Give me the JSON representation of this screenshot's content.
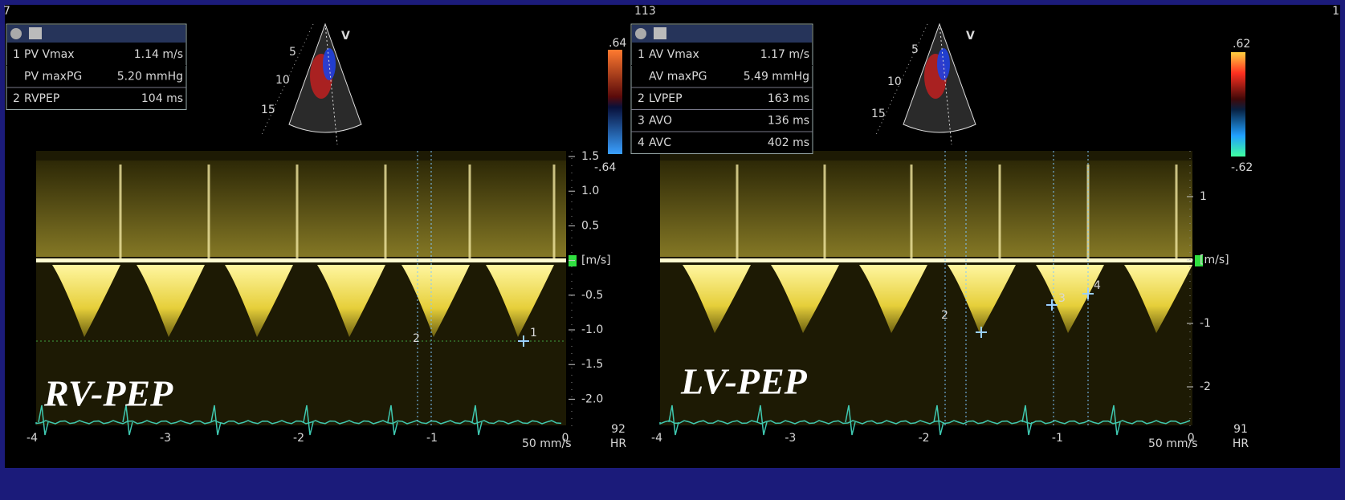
{
  "corner_labels": {
    "left": "7",
    "center": "113",
    "right": "1"
  },
  "panels": [
    {
      "label": "RV-PEP",
      "measurements": [
        {
          "index": "1",
          "name": "PV Vmax",
          "value": "1.14 m/s"
        },
        {
          "name": "PV maxPG",
          "value": "5.20 mmHg"
        },
        {
          "index": "2",
          "name": "RVPEP",
          "value": "104 ms"
        }
      ],
      "sector": {
        "depths": [
          "5",
          "10",
          "15"
        ],
        "mode": "V"
      },
      "color_scale": {
        "top": ".64",
        "bottom": "-.64"
      },
      "velocity_axis": [
        "1.5",
        "1.0",
        "0.5",
        "[m/s]",
        "-0.5",
        "-1.0",
        "-1.5",
        "-2.0"
      ],
      "time_axis": [
        "-4",
        "-3",
        "-2",
        "-1",
        "0"
      ],
      "heart_rate": {
        "value": "92",
        "label": "HR"
      },
      "sweep_speed": "50 mm/s",
      "markers": [
        "1",
        "2"
      ]
    },
    {
      "label": "LV-PEP",
      "measurements": [
        {
          "index": "1",
          "name": "AV Vmax",
          "value": "1.17 m/s"
        },
        {
          "name": "AV maxPG",
          "value": "5.49 mmHg"
        },
        {
          "index": "2",
          "name": "LVPEP",
          "value": "163 ms"
        },
        {
          "index": "3",
          "name": "AVO",
          "value": "136 ms"
        },
        {
          "index": "4",
          "name": "AVC",
          "value": "402 ms"
        }
      ],
      "sector": {
        "depths": [
          "5",
          "10",
          "15"
        ],
        "mode": "V"
      },
      "color_scale": {
        "top": ".62",
        "bottom": "-.62"
      },
      "velocity_axis": [
        "1",
        "[m/s]",
        "-1",
        "-2"
      ],
      "time_axis": [
        "-4",
        "-3",
        "-2",
        "-1",
        "0"
      ],
      "heart_rate": {
        "value": "91",
        "label": "HR"
      },
      "sweep_speed": "50 mm/s",
      "markers": [
        "2",
        "3",
        "4"
      ]
    }
  ]
}
